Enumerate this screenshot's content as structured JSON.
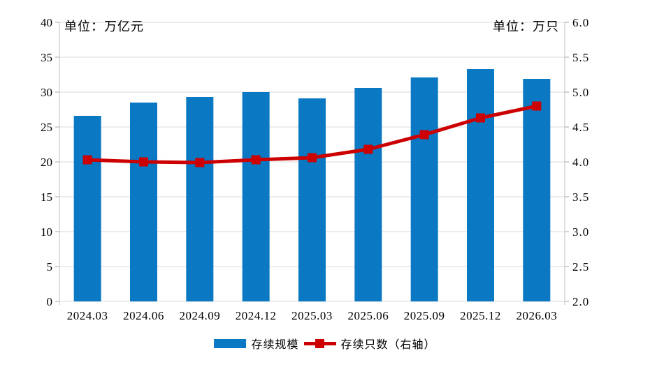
{
  "chart_data": {
    "type": "bar",
    "subtype": "bar-line-combo",
    "categories": [
      "2024.03",
      "2024.06",
      "2024.09",
      "2024.12",
      "2025.03",
      "2025.06",
      "2025.09",
      "2025.12",
      "2026.03"
    ],
    "series": [
      {
        "name": "存续规模",
        "type": "bar",
        "axis": "left",
        "color": "#0A78C3",
        "values": [
          26.6,
          28.5,
          29.3,
          30.0,
          29.1,
          30.6,
          32.1,
          33.3,
          31.9
        ]
      },
      {
        "name": "存续只数（右轴）",
        "type": "line",
        "axis": "right",
        "color": "#CC0000",
        "values": [
          4.03,
          4.0,
          3.99,
          4.03,
          4.06,
          4.18,
          4.39,
          4.63,
          4.8
        ]
      }
    ],
    "left_axis": {
      "unit_label": "单位：万亿元",
      "min": 0,
      "max": 40,
      "step": 5,
      "tick_labels": [
        "0",
        "5",
        "10",
        "15",
        "20",
        "25",
        "30",
        "35",
        "40"
      ]
    },
    "right_axis": {
      "unit_label": "单位：万只",
      "min": 2.0,
      "max": 6.0,
      "step": 0.5,
      "tick_labels": [
        "2.0",
        "2.5",
        "3.0",
        "3.5",
        "4.0",
        "4.5",
        "5.0",
        "5.5",
        "6.0"
      ]
    },
    "legend_position": "bottom",
    "grid": true,
    "grid_color": "#D9D9D9",
    "axis_color": "#BFBFBF",
    "tick_color": "#A6A6A6"
  }
}
